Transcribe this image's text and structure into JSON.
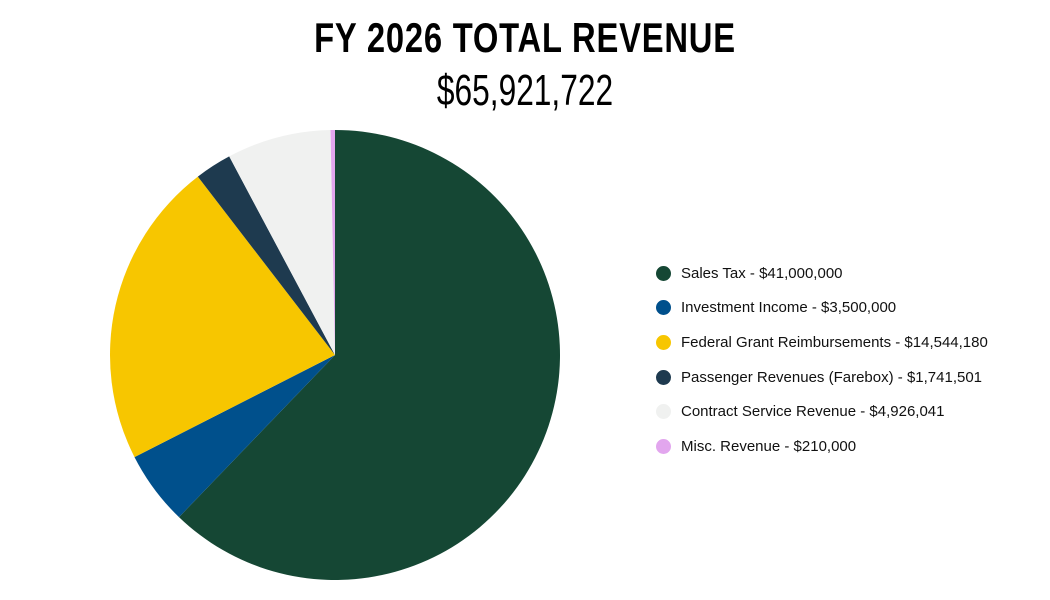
{
  "chart_data": {
    "type": "pie",
    "title": "FY 2026 TOTAL REVENUE",
    "subtitle": "$65,921,722",
    "legend_position": "right",
    "start_angle": "12 o'clock, clockwise",
    "slices": [
      {
        "name": "Sales Tax",
        "value": 41000000,
        "label": "Sales Tax - $41,000,000",
        "color": "#154734"
      },
      {
        "name": "Investment Income",
        "value": 3500000,
        "label": "Investment Income - $3,500,000",
        "color": "#00508C"
      },
      {
        "name": "Federal Grant Reimbursements",
        "value": 14544180,
        "label": "Federal Grant Reimbursements - $14,544,180",
        "color": "#F7C600"
      },
      {
        "name": "Passenger Revenues (Farebox)",
        "value": 1741501,
        "label": "Passenger Revenues (Farebox) - $1,741,501",
        "color": "#1E3A4F"
      },
      {
        "name": "Contract Service Revenue",
        "value": 4926041,
        "label": "Contract Service Revenue - $4,926,041",
        "color": "#F0F1F0"
      },
      {
        "name": "Misc. Revenue",
        "value": 210000,
        "label": "Misc. Revenue - $210,000",
        "color": "#E2A6EE"
      }
    ]
  }
}
